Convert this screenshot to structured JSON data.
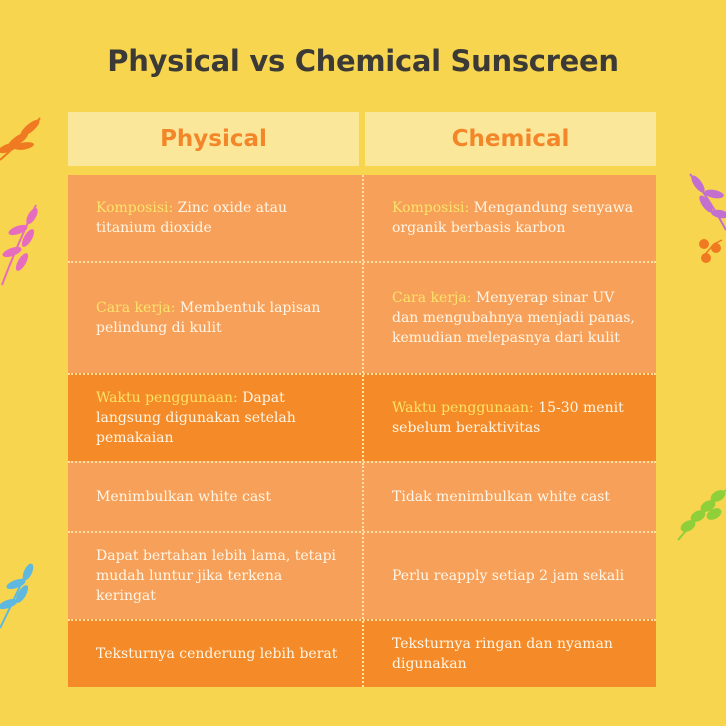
{
  "title": "Physical vs Chemical Sunscreen",
  "headers": {
    "left": "Physical",
    "right": "Chemical"
  },
  "rows": [
    {
      "left": {
        "label": "Komposisi:",
        "text": " Zinc oxide atau titanium dioxide"
      },
      "right": {
        "label": "Komposisi:",
        "text": " Mengandung senyawa organik berbasis karbon"
      }
    },
    {
      "left": {
        "label": "Cara kerja:",
        "text": " Membentuk lapisan pelindung di kulit"
      },
      "right": {
        "label": "Cara kerja:",
        "text": " Menyerap sinar UV dan mengubahnya menjadi panas, kemudian melepasnya dari kulit"
      }
    },
    {
      "left": {
        "label": "Waktu penggunaan:",
        "text": " Dapat langsung digunakan setelah pemakaian"
      },
      "right": {
        "label": "Waktu penggunaan:",
        "text": " 15-30 menit sebelum beraktivitas"
      }
    },
    {
      "left": {
        "label": "",
        "text": "Menimbulkan white cast"
      },
      "right": {
        "label": "",
        "text": "Tidak menimbulkan white cast"
      }
    },
    {
      "left": {
        "label": "",
        "text": "Dapat bertahan lebih lama, tetapi mudah luntur jika terkena keringat"
      },
      "right": {
        "label": "",
        "text": "Perlu reapply setiap 2 jam sekali"
      }
    },
    {
      "left": {
        "label": "",
        "text": "Teksturnya cenderung lebih berat"
      },
      "right": {
        "label": "",
        "text": "Teksturnya ringan dan nyaman digunakan"
      }
    }
  ],
  "colors": {
    "background": "#f7d54e",
    "header": "#fbe79a",
    "accent": "#f4862a",
    "row_light": "#f7a05a",
    "row_dark": "#f48a28",
    "label": "#fbe36a"
  },
  "decorations": [
    "orange-leaf-sprig-icon",
    "pink-leaf-sprig-icon",
    "blue-leaf-sprig-icon",
    "purple-leaf-sprig-icon",
    "orange-berry-icon",
    "green-leaf-sprig-icon"
  ]
}
